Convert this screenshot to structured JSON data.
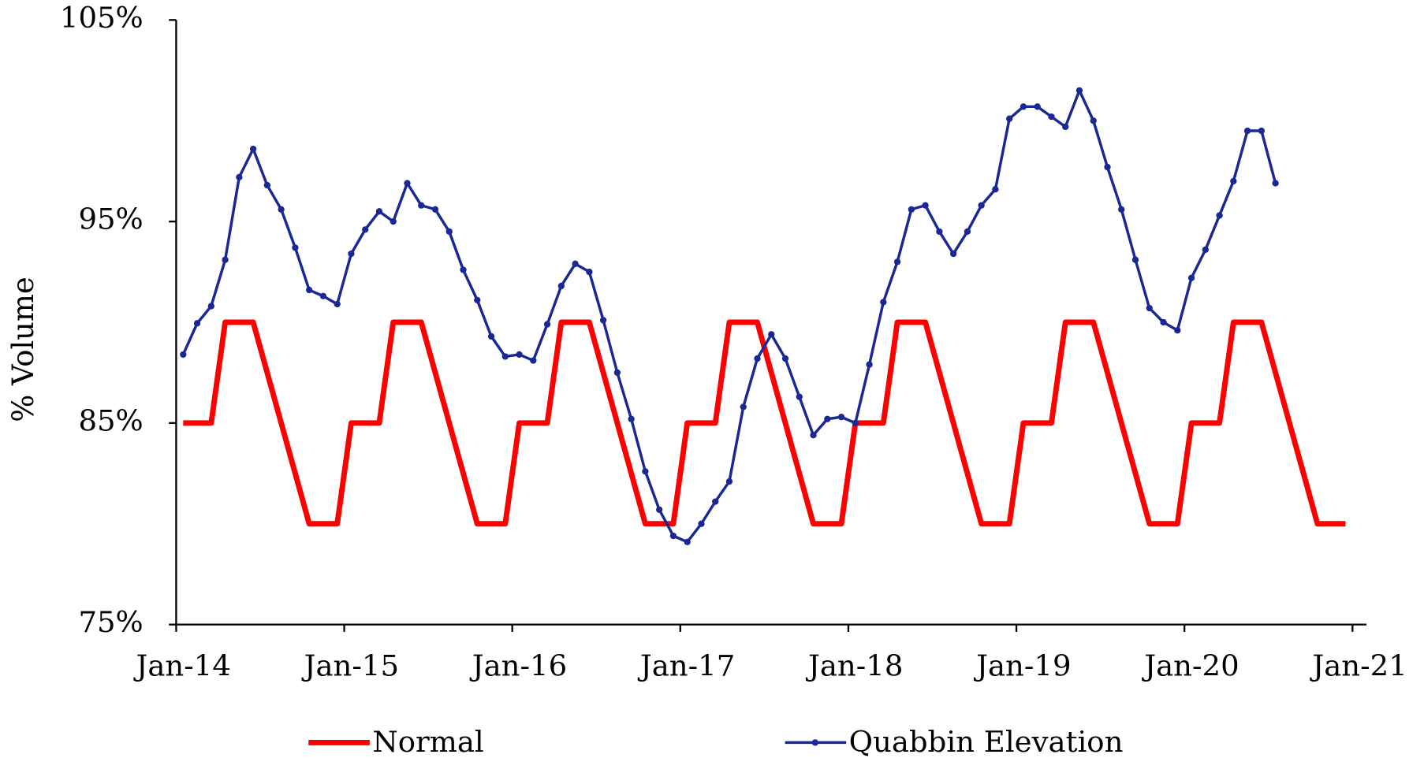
{
  "chart_data": {
    "type": "line",
    "y_label": "% Volume",
    "x": [
      "2014-01",
      "2014-02",
      "2014-03",
      "2014-04",
      "2014-05",
      "2014-06",
      "2014-07",
      "2014-08",
      "2014-09",
      "2014-10",
      "2014-11",
      "2014-12",
      "2015-01",
      "2015-02",
      "2015-03",
      "2015-04",
      "2015-05",
      "2015-06",
      "2015-07",
      "2015-08",
      "2015-09",
      "2015-10",
      "2015-11",
      "2015-12",
      "2016-01",
      "2016-02",
      "2016-03",
      "2016-04",
      "2016-05",
      "2016-06",
      "2016-07",
      "2016-08",
      "2016-09",
      "2016-10",
      "2016-11",
      "2016-12",
      "2017-01",
      "2017-02",
      "2017-03",
      "2017-04",
      "2017-05",
      "2017-06",
      "2017-07",
      "2017-08",
      "2017-09",
      "2017-10",
      "2017-11",
      "2017-12",
      "2018-01",
      "2018-02",
      "2018-03",
      "2018-04",
      "2018-05",
      "2018-06",
      "2018-07",
      "2018-08",
      "2018-09",
      "2018-10",
      "2018-11",
      "2018-12",
      "2019-01",
      "2019-02",
      "2019-03",
      "2019-04",
      "2019-05",
      "2019-06",
      "2019-07",
      "2019-08",
      "2019-09",
      "2019-10",
      "2019-11",
      "2019-12",
      "2020-01",
      "2020-02",
      "2020-03",
      "2020-04",
      "2020-05",
      "2020-06",
      "2020-07",
      "2020-08",
      "2020-09",
      "2020-10",
      "2020-11",
      "2020-12"
    ],
    "series": [
      {
        "name": "Normal",
        "color": "#ff0000",
        "markers": false,
        "values": [
          85,
          85,
          85,
          90,
          90,
          90,
          87.5,
          85,
          82.5,
          80,
          80,
          80,
          85,
          85,
          85,
          90,
          90,
          90,
          87.5,
          85,
          82.5,
          80,
          80,
          80,
          85,
          85,
          85,
          90,
          90,
          90,
          87.5,
          85,
          82.5,
          80,
          80,
          80,
          85,
          85,
          85,
          90,
          90,
          90,
          87.5,
          85,
          82.5,
          80,
          80,
          80,
          85,
          85,
          85,
          90,
          90,
          90,
          87.5,
          85,
          82.5,
          80,
          80,
          80,
          85,
          85,
          85,
          90,
          90,
          90,
          87.5,
          85,
          82.5,
          80,
          80,
          80,
          85,
          85,
          85,
          90,
          90,
          90,
          87.5,
          85,
          82.5,
          80,
          80,
          80
        ]
      },
      {
        "name": "Quabbin Elevation",
        "color": "#1a2896",
        "markers": true,
        "values": [
          88.4,
          89.95,
          90.8,
          93.1,
          97.2,
          98.6,
          96.8,
          95.6,
          93.7,
          91.6,
          91.3,
          90.9,
          93.4,
          94.6,
          95.5,
          95.0,
          96.9,
          95.8,
          95.6,
          94.5,
          92.6,
          91.1,
          89.3,
          88.3,
          88.4,
          88.1,
          89.9,
          91.8,
          92.9,
          92.5,
          90.1,
          87.5,
          85.2,
          82.6,
          80.7,
          79.4,
          79.1,
          80.0,
          81.1,
          82.1,
          85.8,
          88.2,
          89.4,
          88.2,
          86.3,
          84.4,
          85.2,
          85.3,
          85.0,
          87.9,
          91.0,
          93.0,
          95.6,
          95.8,
          94.5,
          93.4,
          94.5,
          95.8,
          96.6,
          100.1,
          100.7,
          100.7,
          100.2,
          99.7,
          101.5,
          100.0,
          97.7,
          95.6,
          93.1,
          90.7,
          90.0,
          89.6,
          92.2,
          93.6,
          95.3,
          97.0,
          99.5,
          99.5,
          96.9,
          null,
          null,
          null,
          null,
          null
        ]
      }
    ],
    "xlim": [
      "2014-01",
      "2021-02"
    ],
    "xticks": [
      {
        "value": "2014-01",
        "label": "Jan-14"
      },
      {
        "value": "2015-01",
        "label": "Jan-15"
      },
      {
        "value": "2016-01",
        "label": "Jan-16"
      },
      {
        "value": "2017-01",
        "label": "Jan-17"
      },
      {
        "value": "2018-01",
        "label": "Jan-18"
      },
      {
        "value": "2019-01",
        "label": "Jan-19"
      },
      {
        "value": "2020-01",
        "label": "Jan-20"
      },
      {
        "value": "2021-01",
        "label": "Jan-21"
      }
    ],
    "ylim": [
      75,
      105
    ],
    "yticks": [
      {
        "value": 75,
        "label": "75%"
      },
      {
        "value": 85,
        "label": "85%"
      },
      {
        "value": 95,
        "label": "95%"
      },
      {
        "value": 105,
        "label": "105%"
      }
    ],
    "grid": false,
    "legend": "bottom"
  }
}
